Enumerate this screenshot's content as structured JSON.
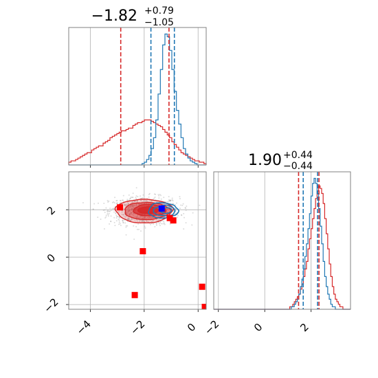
{
  "chart_data": {
    "type": "corner",
    "colors": {
      "blue": "#1f77b4",
      "red": "#d62728",
      "marker_red": "#ff0000",
      "marker_blue": "#0000ff"
    },
    "params": [
      {
        "title_main": "−1.82",
        "title_sup": "+0.79",
        "title_sub": "−1.05",
        "range": [
          -4.8,
          0.3
        ]
      },
      {
        "title_main": "1.90",
        "title_sup": "+0.44",
        "title_sub": "−0.44",
        "range": [
          -2.2,
          3.7
        ]
      }
    ],
    "hist1": {
      "xlim": [
        -4.8,
        0.3
      ],
      "x_ticks": [
        -4,
        -2,
        0
      ],
      "x_tick_labels": [
        "−4",
        "−2",
        "0"
      ],
      "red_quantile_lines": [
        -2.87,
        -1.08
      ],
      "blue_quantile_lines": [
        -1.75,
        -0.88
      ],
      "red_counts": [
        2,
        3,
        3,
        4,
        5,
        6,
        7,
        8,
        9,
        9,
        11,
        12,
        13,
        14,
        14,
        16,
        17,
        18,
        20,
        21,
        22,
        23,
        24,
        25,
        25,
        26,
        27,
        27,
        29,
        30,
        31,
        31,
        32,
        33,
        33,
        33,
        32,
        31,
        30,
        29,
        28,
        26,
        24,
        22,
        20,
        17,
        15,
        13,
        11,
        9,
        8,
        7,
        6,
        5,
        4,
        3,
        3,
        2,
        2,
        1
      ],
      "blue_counts": [
        0,
        0,
        0,
        0,
        0,
        0,
        0,
        0,
        0,
        0,
        0,
        0,
        0,
        0,
        0,
        0,
        0,
        0,
        0,
        0,
        0,
        0,
        0,
        0,
        0,
        0,
        0,
        0,
        0,
        0,
        0,
        0,
        1,
        2,
        4,
        7,
        12,
        20,
        33,
        52,
        70,
        88,
        96,
        94,
        84,
        70,
        54,
        40,
        30,
        20,
        12,
        8,
        5,
        3,
        2,
        1,
        0,
        0,
        0,
        0
      ]
    },
    "hist2": {
      "xlim": [
        -2.2,
        3.7
      ],
      "x_ticks": [
        -2,
        0,
        2
      ],
      "x_tick_labels": [
        "−2",
        "0",
        "2"
      ],
      "red_quantile_lines": [
        1.46,
        2.34
      ],
      "blue_quantile_lines": [
        1.66,
        2.28
      ],
      "red_counts": [
        0,
        0,
        0,
        0,
        0,
        0,
        0,
        0,
        0,
        0,
        0,
        0,
        0,
        0,
        0,
        0,
        0,
        0,
        0,
        0,
        0,
        0,
        0,
        0,
        0,
        0,
        0,
        0,
        0,
        0,
        0,
        0,
        0,
        0,
        0,
        0,
        0,
        0,
        0,
        0,
        0,
        0,
        0,
        0,
        0,
        0,
        0,
        0,
        0,
        0,
        1,
        1,
        2,
        3,
        4,
        5,
        6,
        8,
        10,
        13,
        16,
        19,
        24,
        28,
        32,
        36,
        40,
        44,
        47,
        49,
        48,
        46,
        42,
        36,
        30,
        24,
        18,
        13,
        9,
        6,
        4,
        3,
        2,
        1,
        1,
        0,
        0,
        0,
        0,
        0
      ],
      "blue_counts": [
        0,
        0,
        0,
        0,
        0,
        0,
        0,
        0,
        0,
        0,
        0,
        0,
        0,
        0,
        0,
        0,
        0,
        0,
        0,
        0,
        0,
        0,
        0,
        0,
        0,
        0,
        0,
        0,
        0,
        0,
        0,
        0,
        0,
        0,
        0,
        0,
        0,
        0,
        0,
        0,
        0,
        0,
        0,
        0,
        0,
        0,
        0,
        0,
        0,
        0,
        0,
        1,
        1,
        2,
        3,
        4,
        6,
        9,
        12,
        16,
        21,
        26,
        32,
        38,
        45,
        50,
        52,
        50,
        46,
        40,
        33,
        26,
        19,
        13,
        9,
        6,
        4,
        2,
        1,
        1,
        0,
        0,
        0,
        0,
        0,
        0,
        0,
        0,
        0,
        0
      ]
    },
    "scatter": {
      "xlim": [
        -4.8,
        0.3
      ],
      "ylim": [
        -2.2,
        3.6
      ],
      "x_ticks": [
        -4,
        -2,
        0
      ],
      "x_tick_labels": [
        "−4",
        "−2",
        "0"
      ],
      "y_ticks": [
        -2,
        0,
        2
      ],
      "y_tick_labels": [
        "−2",
        "0",
        "2"
      ],
      "red_markers": [
        [
          -2.9,
          2.1
        ],
        [
          -1.05,
          1.65
        ],
        [
          -0.92,
          1.55
        ],
        [
          -2.05,
          0.25
        ],
        [
          -2.35,
          -1.6
        ],
        [
          0.15,
          -1.25
        ],
        [
          0.25,
          -2.1
        ]
      ],
      "blue_markers": [
        [
          -1.35,
          2.05
        ]
      ],
      "gray_cloud_center": [
        -2.0,
        1.95
      ],
      "gray_cloud_spread": [
        1.05,
        0.48
      ],
      "red_contours": [
        {
          "center": [
            -2.0,
            1.95
          ],
          "radius": [
            1.05,
            0.5
          ],
          "opacity": 0.22
        },
        {
          "center": [
            -1.9,
            1.95
          ],
          "radius": [
            0.85,
            0.36
          ],
          "opacity": 0.45
        },
        {
          "center": [
            -1.8,
            1.98
          ],
          "radius": [
            0.6,
            0.24
          ],
          "opacity": 0.65
        },
        {
          "center": [
            -1.85,
            1.98
          ],
          "radius": [
            0.38,
            0.14
          ],
          "opacity": 0.85
        }
      ],
      "blue_contours": [
        {
          "center": [
            -1.3,
            1.97
          ],
          "radius": [
            0.55,
            0.32
          ]
        },
        {
          "center": [
            -1.25,
            1.96
          ],
          "radius": [
            0.4,
            0.22
          ]
        },
        {
          "center": [
            -1.2,
            1.97
          ],
          "radius": [
            0.22,
            0.12
          ]
        }
      ]
    }
  }
}
